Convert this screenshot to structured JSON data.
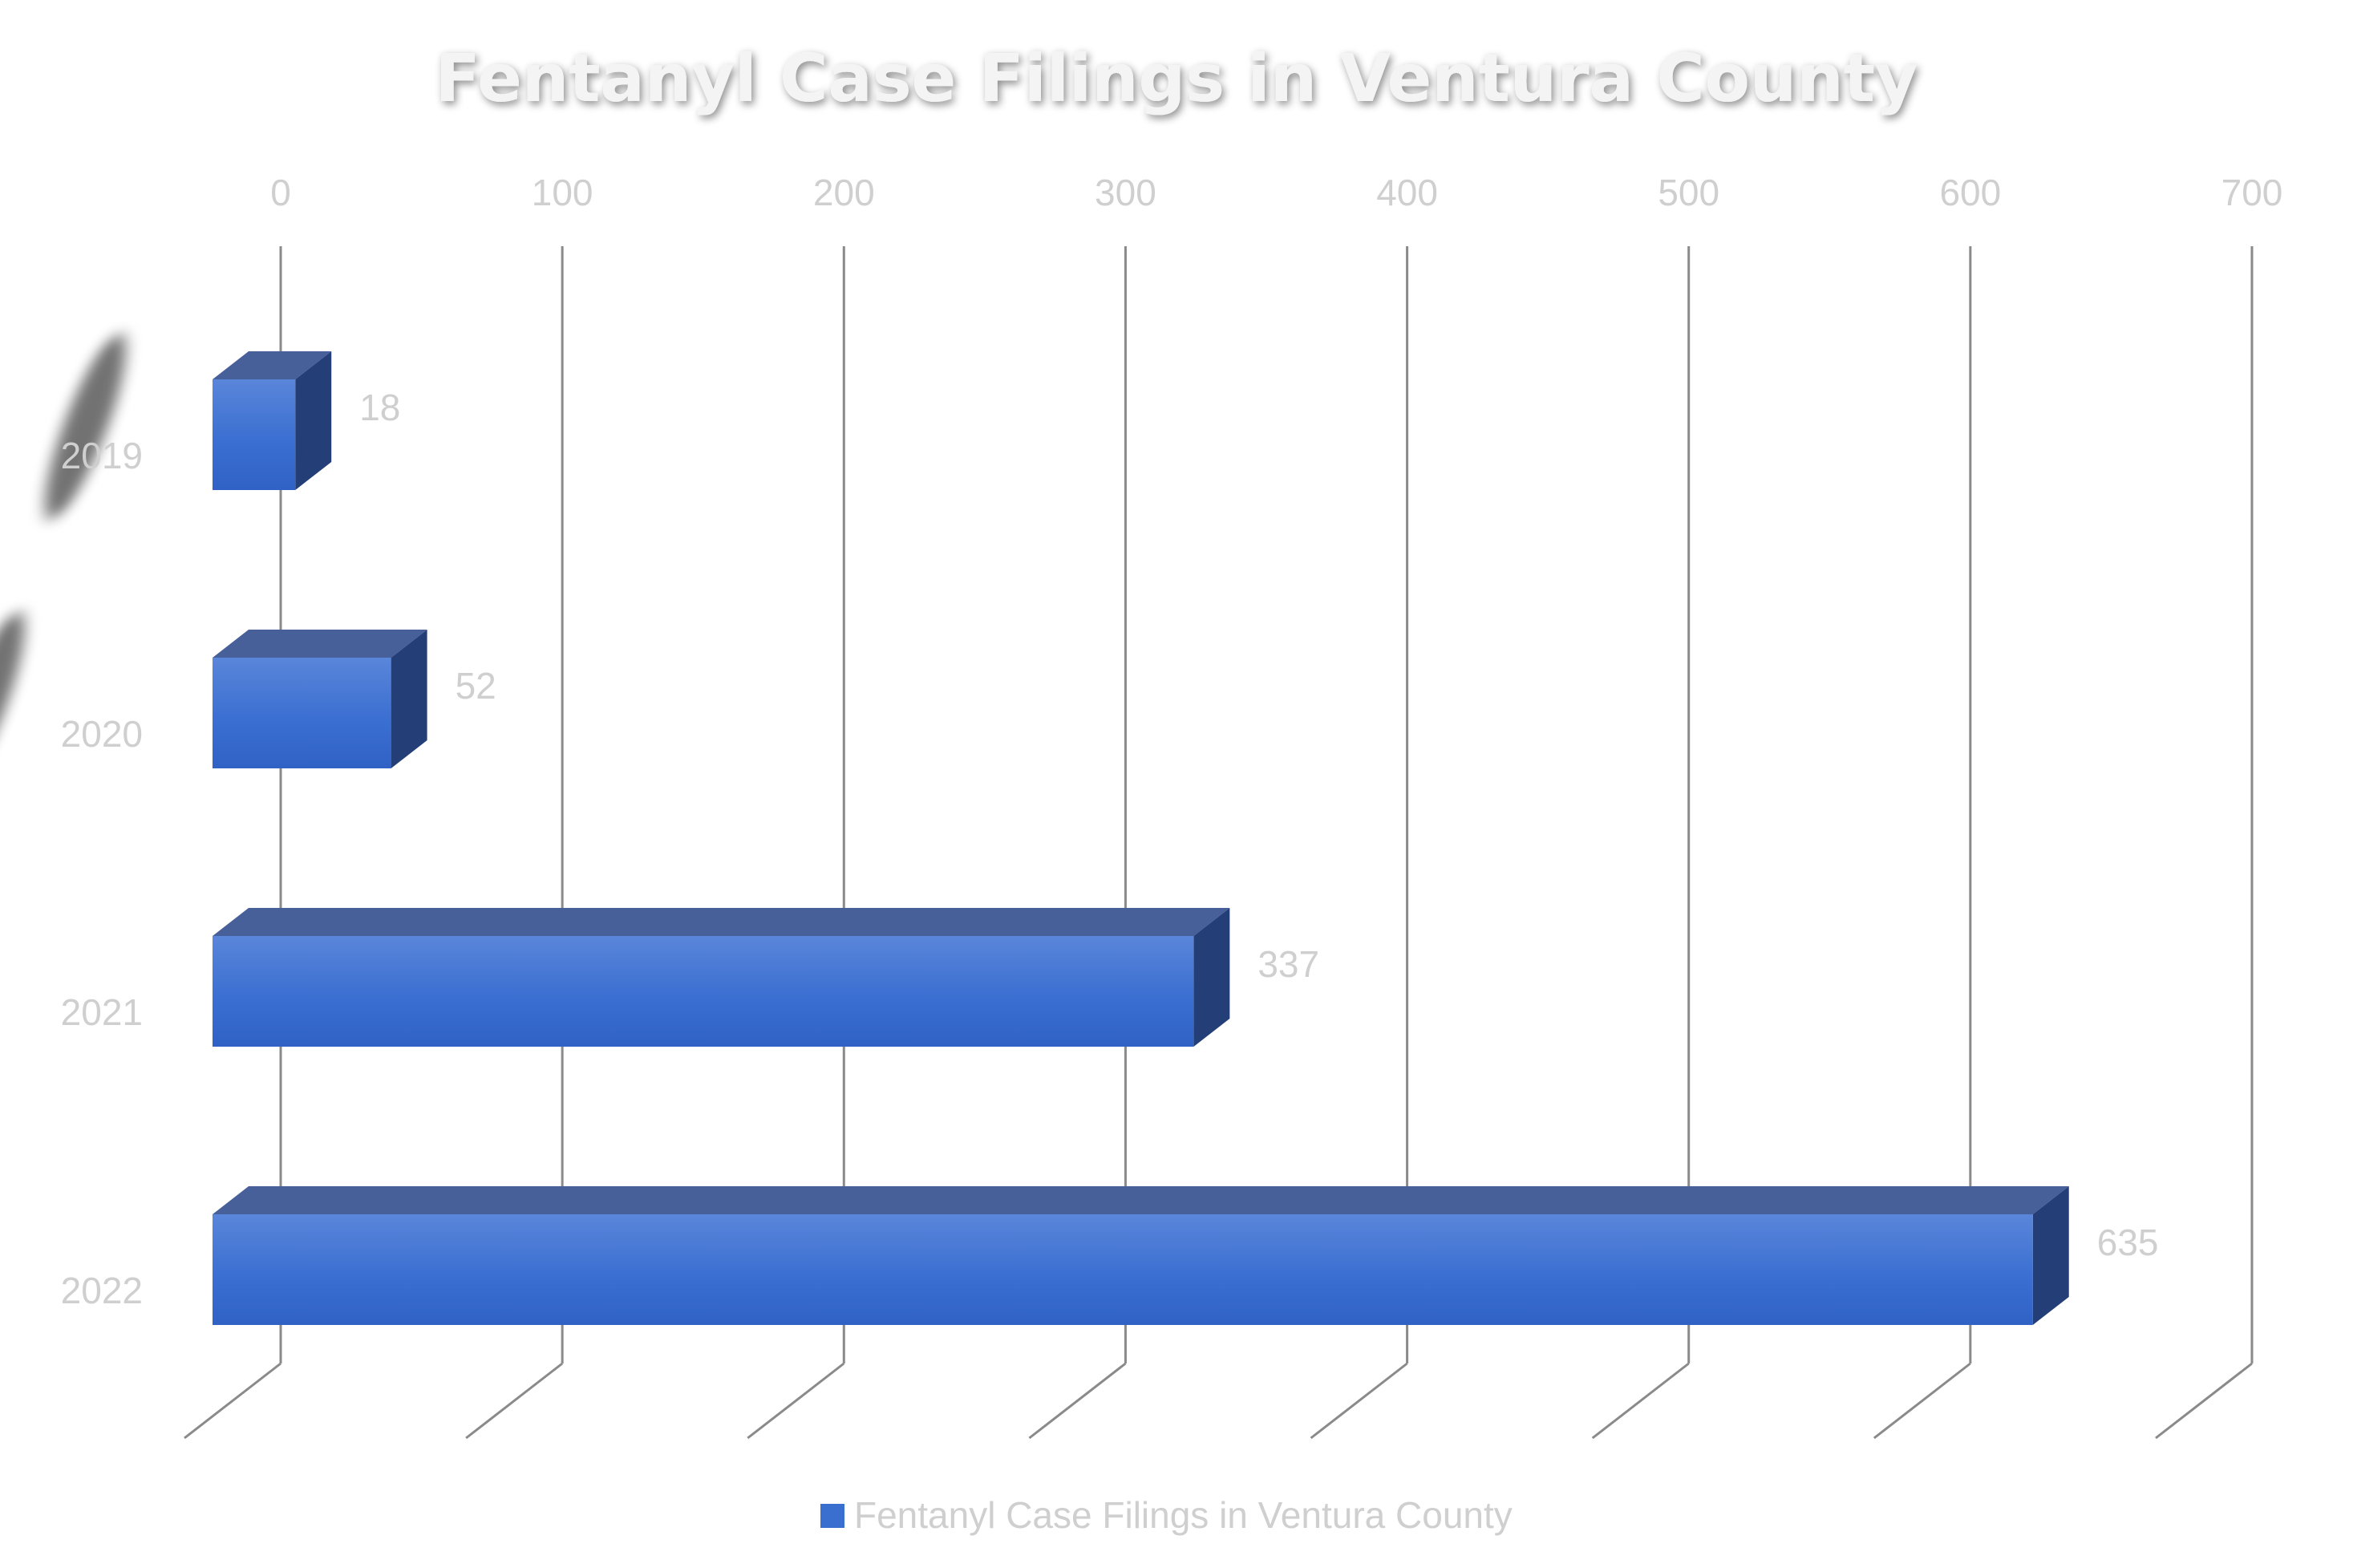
{
  "chart_data": {
    "type": "bar",
    "orientation": "horizontal",
    "style": "3d",
    "title": "Fentanyl Case Filings in Ventura County",
    "categories": [
      "2019",
      "2020",
      "2021",
      "2022"
    ],
    "series": [
      {
        "name": "Fentanyl Case Filings in Ventura County",
        "values": [
          18,
          52,
          337,
          635
        ]
      }
    ],
    "data_labels": [
      "18",
      "52",
      "337",
      "635"
    ],
    "xlim": [
      0,
      700
    ],
    "ticks": [
      0,
      100,
      200,
      300,
      400,
      500,
      600,
      700
    ],
    "tick_labels": [
      "0",
      "100",
      "200",
      "300",
      "400",
      "500",
      "600",
      "700"
    ],
    "axis_position": "top",
    "grid": true,
    "legend": "bottom",
    "colors": {
      "bar_front": "#3a6fd0",
      "bar_top": "#48609a",
      "bar_side": "#243f78",
      "text": "#cfcfcf",
      "grid": "#8a8a8a"
    }
  }
}
